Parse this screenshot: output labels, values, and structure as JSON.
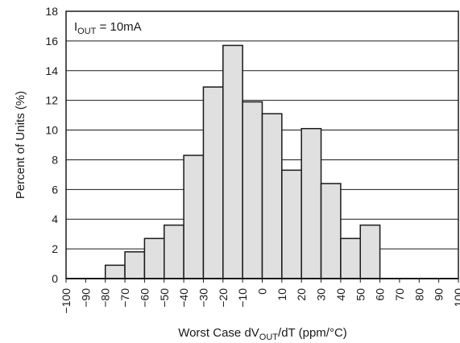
{
  "chart_data": {
    "type": "bar",
    "title": "",
    "annotation": {
      "main": "I",
      "sub": "OUT",
      "rest": " = 10mA"
    },
    "xlabel": {
      "main": "Worst Case dV",
      "sub": "OUT",
      "rest": "/dT (ppm/°C)"
    },
    "ylabel": "Percent of Units (%)",
    "ylim": [
      0,
      18
    ],
    "yticks": [
      "0",
      "2",
      "4",
      "6",
      "8",
      "10",
      "12",
      "14",
      "16",
      "18"
    ],
    "xlim": [
      -100,
      100
    ],
    "xticks": [
      "−100",
      "−90",
      "−80",
      "−70",
      "−60",
      "−50",
      "−40",
      "−30",
      "−20",
      "−10",
      "0",
      "10",
      "20",
      "30",
      "40",
      "50",
      "60",
      "70",
      "80",
      "90",
      "100"
    ],
    "grid": "horizontal",
    "bin_width": 10,
    "bins": [
      {
        "x": -75,
        "value": 0.9
      },
      {
        "x": -65,
        "value": 1.8
      },
      {
        "x": -55,
        "value": 2.7
      },
      {
        "x": -45,
        "value": 3.6
      },
      {
        "x": -35,
        "value": 8.3
      },
      {
        "x": -25,
        "value": 12.9
      },
      {
        "x": -15,
        "value": 15.7
      },
      {
        "x": -5,
        "value": 11.9
      },
      {
        "x": 5,
        "value": 11.1
      },
      {
        "x": 15,
        "value": 7.3
      },
      {
        "x": 25,
        "value": 10.1
      },
      {
        "x": 35,
        "value": 6.4
      },
      {
        "x": 45,
        "value": 2.7
      },
      {
        "x": 55,
        "value": 3.6
      }
    ],
    "colors": {
      "bar_fill": "#e0e0e0",
      "bar_stroke": "#1a1a1a",
      "grid": "#1a1a1a"
    }
  }
}
